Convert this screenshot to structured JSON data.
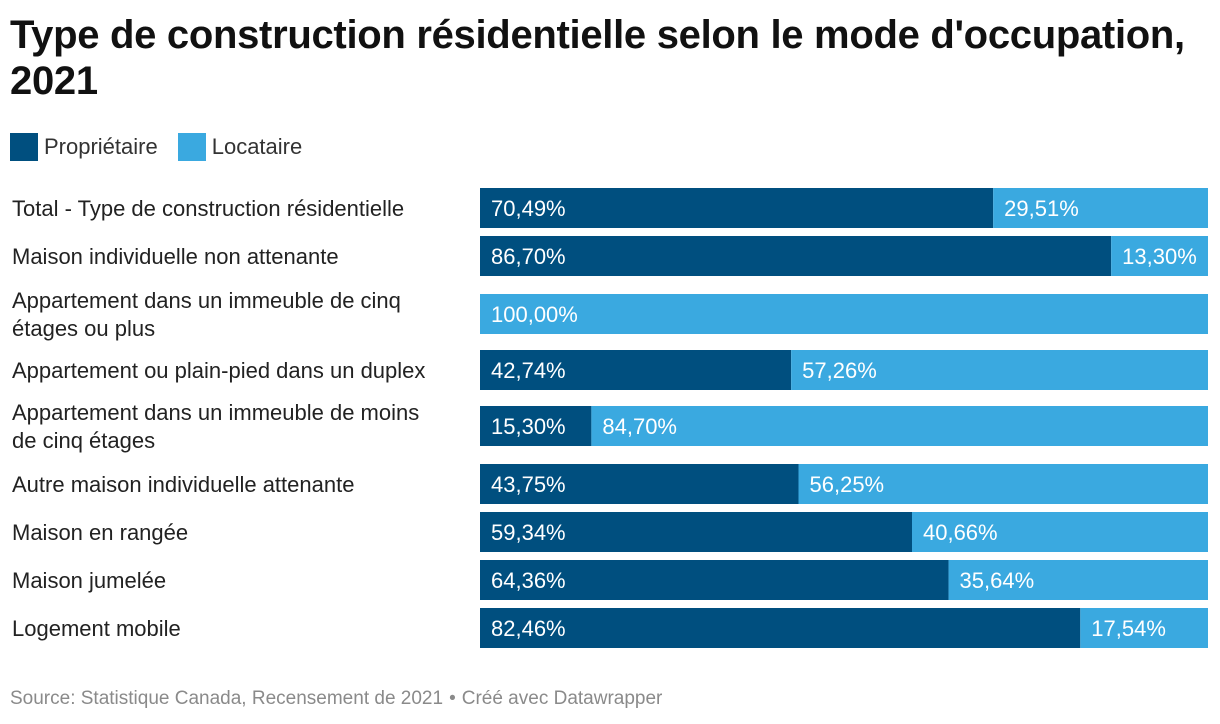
{
  "colors": {
    "proprietaire": "#004f7f",
    "locataire": "#3aa9e0",
    "label_text": "#ffffff",
    "category_text": "#222222"
  },
  "legend": {
    "items": [
      {
        "label": "Propriétaire",
        "color": "#004f7f"
      },
      {
        "label": "Locataire",
        "color": "#3aa9e0"
      }
    ]
  },
  "footer": {
    "source": "Source: Statistique Canada, Recensement de 2021",
    "separator": "•",
    "credit": "Créé avec Datawrapper"
  },
  "chart_data": {
    "type": "bar",
    "stacked": true,
    "orientation": "horizontal",
    "title": "Type de construction résidentielle selon le mode d'occupation, 2021",
    "xlim": [
      0,
      100
    ],
    "grid": false,
    "legend_position": "top-left",
    "categories": [
      [
        "Total - Type de construction résidentielle"
      ],
      [
        "Maison individuelle non attenante"
      ],
      [
        "Appartement dans un immeuble de cinq",
        "étages ou plus"
      ],
      [
        "Appartement ou plain-pied dans un duplex"
      ],
      [
        "Appartement dans un immeuble de moins",
        "de cinq étages"
      ],
      [
        "Autre maison individuelle attenante"
      ],
      [
        "Maison en rangée"
      ],
      [
        "Maison jumelée"
      ],
      [
        "Logement mobile"
      ]
    ],
    "series": [
      {
        "name": "Propriétaire",
        "values": [
          70.49,
          86.7,
          0,
          42.74,
          15.3,
          43.75,
          59.34,
          64.36,
          82.46
        ],
        "labels": [
          "70,49%",
          "86,70%",
          "",
          "42,74%",
          "15,30%",
          "43,75%",
          "59,34%",
          "64,36%",
          "82,46%"
        ]
      },
      {
        "name": "Locataire",
        "values": [
          29.51,
          13.3,
          100.0,
          57.26,
          84.7,
          56.25,
          40.66,
          35.64,
          17.54
        ],
        "labels": [
          "29,51%",
          "13,30%",
          "100,00%",
          "57,26%",
          "84,70%",
          "56,25%",
          "40,66%",
          "35,64%",
          "17,54%"
        ]
      }
    ]
  }
}
